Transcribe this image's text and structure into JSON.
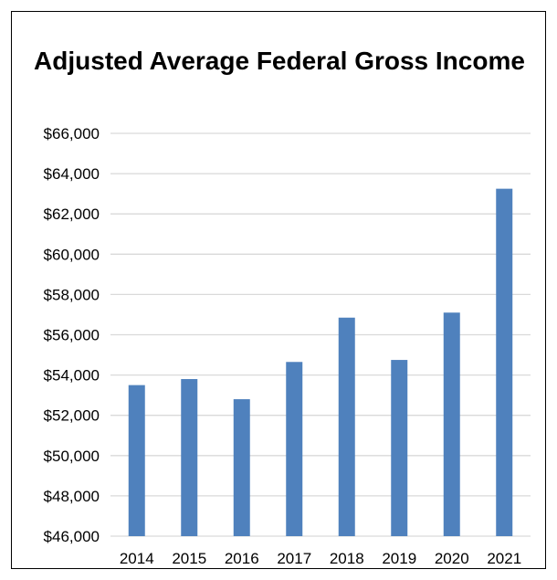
{
  "chart_data": {
    "type": "bar",
    "title": "Adjusted Average Federal Gross Income",
    "xlabel": "",
    "ylabel": "",
    "categories": [
      "2014",
      "2015",
      "2016",
      "2017",
      "2018",
      "2019",
      "2020",
      "2021"
    ],
    "series": [
      {
        "values": [
          53500,
          53800,
          52800,
          54650,
          56850,
          54750,
          57100,
          63250
        ],
        "color": "#4f81bd"
      }
    ],
    "ylim": [
      46000,
      66000
    ],
    "yticks": [
      46000,
      48000,
      50000,
      52000,
      54000,
      56000,
      58000,
      60000,
      62000,
      64000,
      66000
    ],
    "ytick_labels": [
      "$46,000",
      "$48,000",
      "$50,000",
      "$52,000",
      "$54,000",
      "$56,000",
      "$58,000",
      "$60,000",
      "$62,000",
      "$64,000",
      "$66,000"
    ],
    "grid": true,
    "gridline_color": "#d9d9d9",
    "legend": "none"
  }
}
